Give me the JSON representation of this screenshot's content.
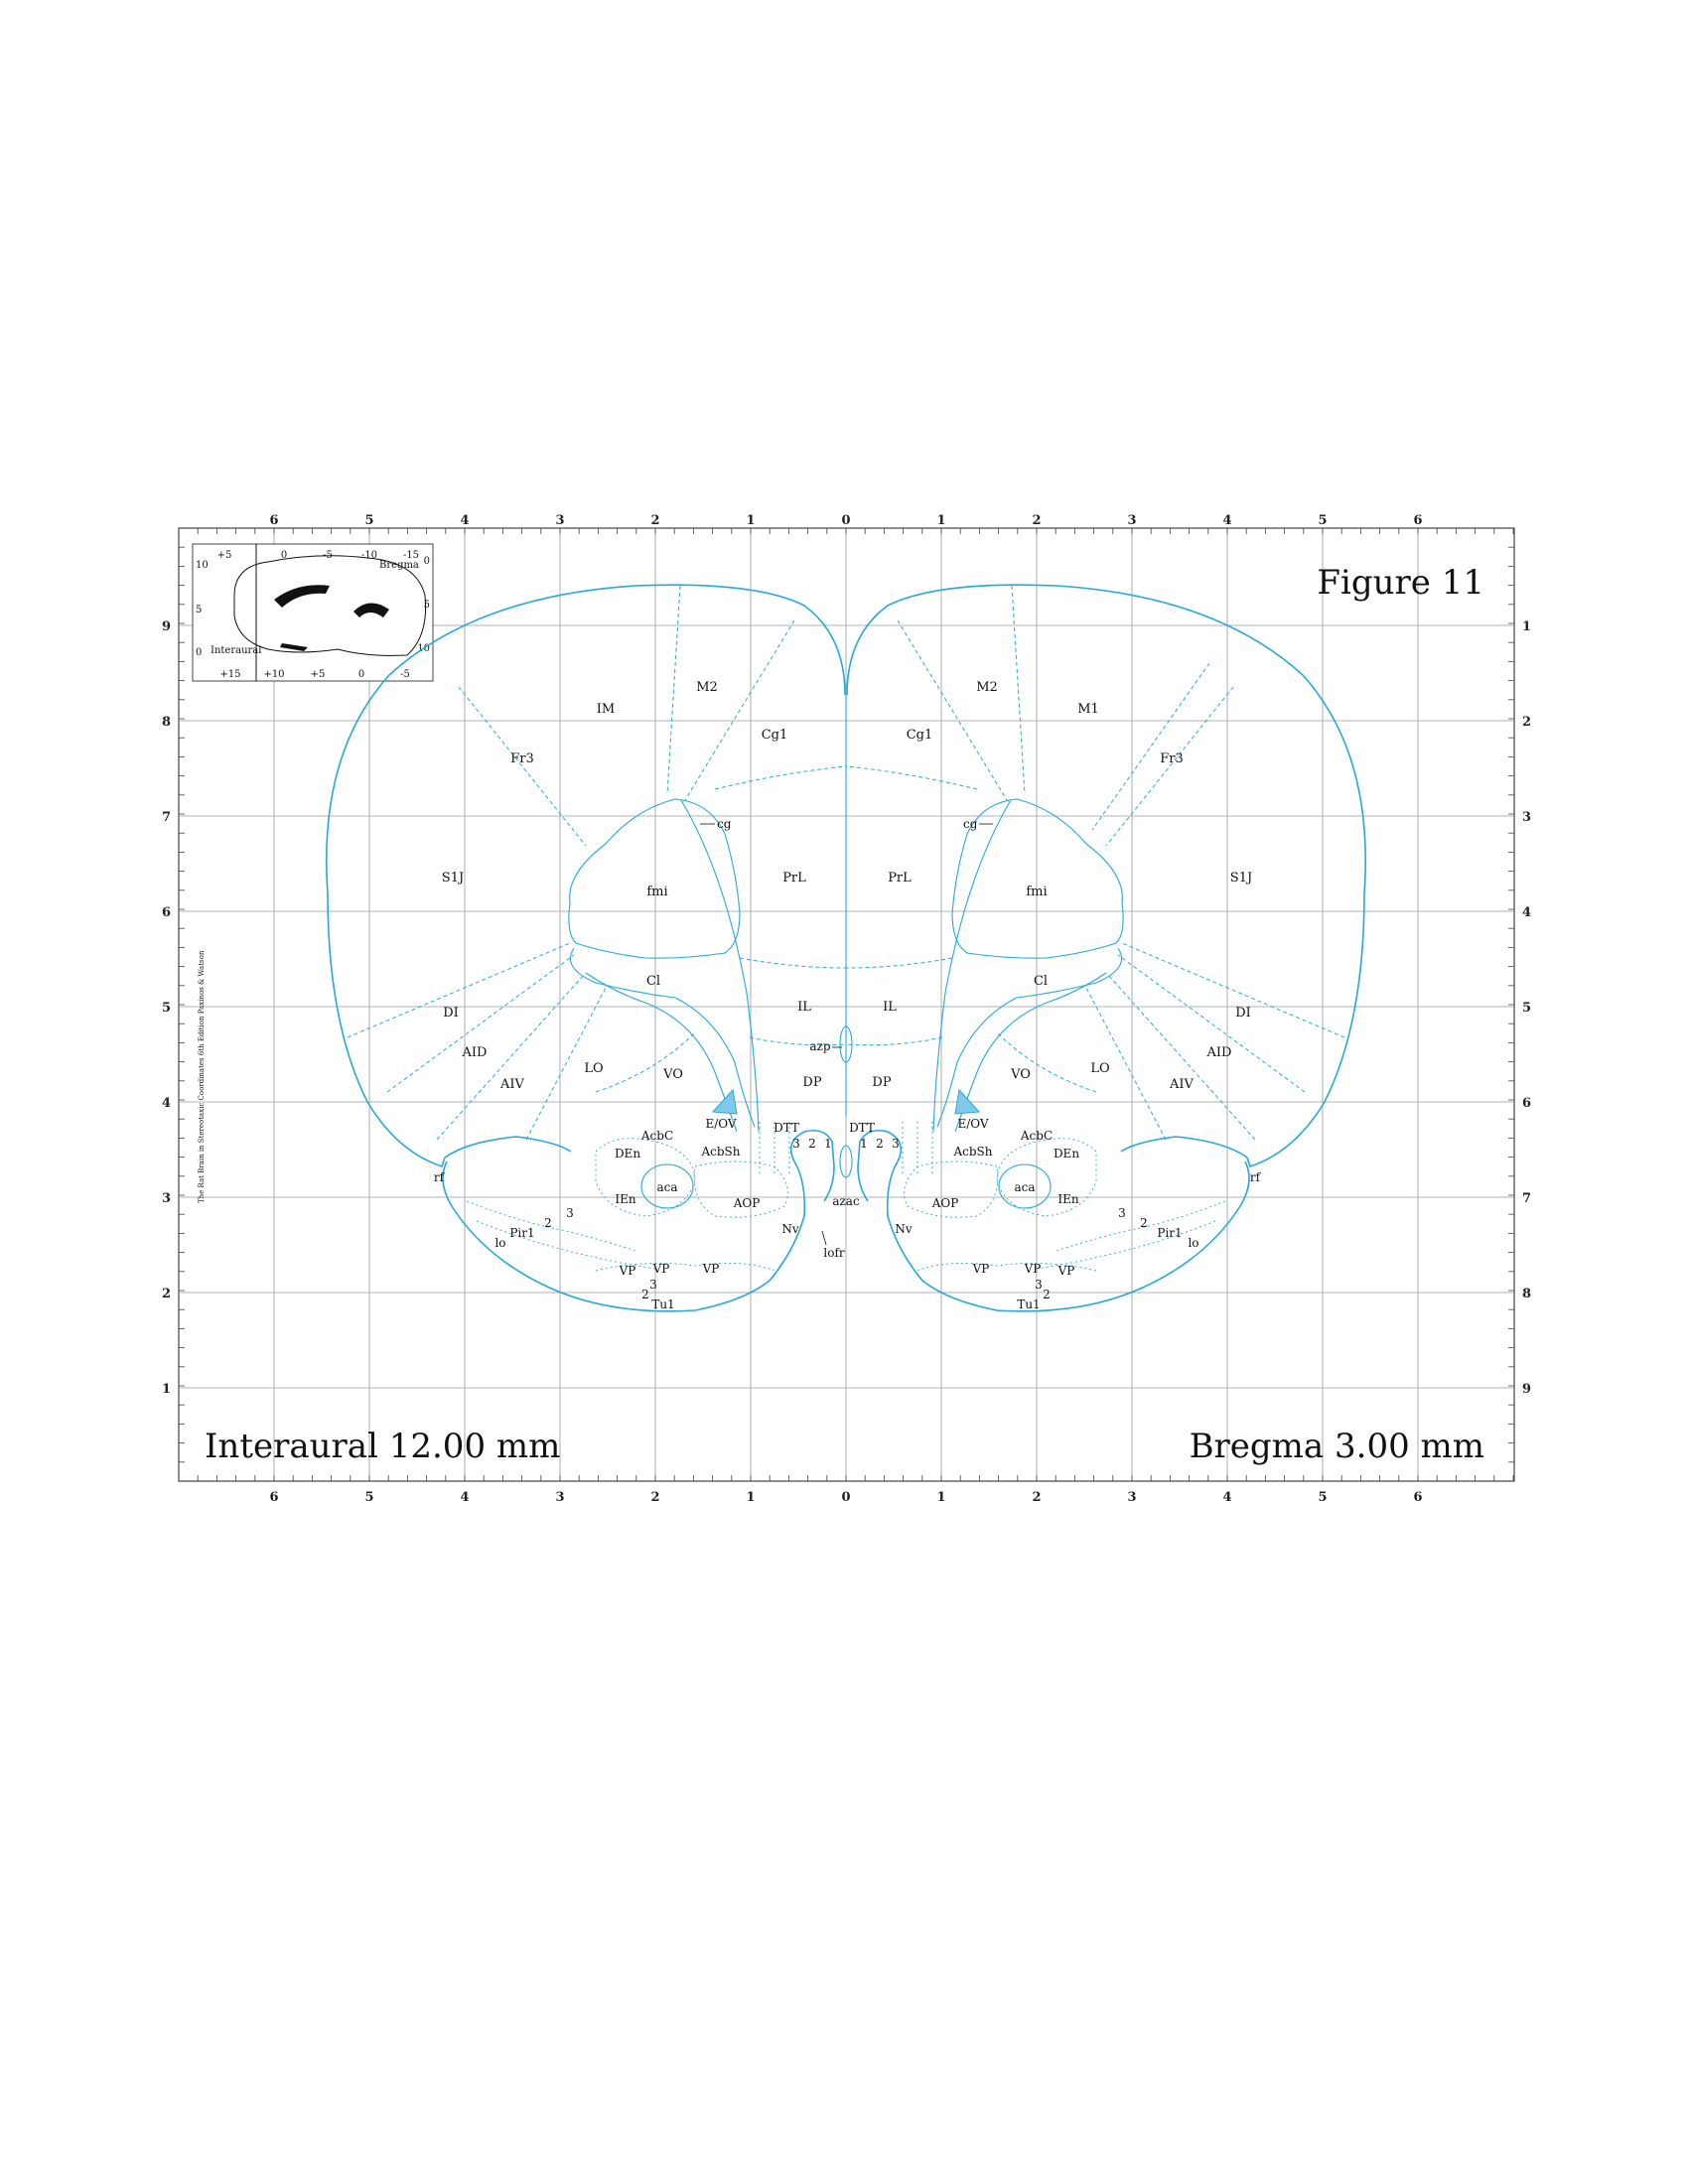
{
  "figure": {
    "title": "Figure 11",
    "interaural": "Interaural 12.00 mm",
    "bregma": "Bregma 3.00 mm",
    "credit": "The Rat Brain in Stereotaxic Coordinates 6th Edition Paxinos & Watson"
  },
  "axes": {
    "top": [
      "6",
      "5",
      "4",
      "3",
      "2",
      "1",
      "0",
      "1",
      "2",
      "3",
      "4",
      "5",
      "6"
    ],
    "bottom": [
      "6",
      "5",
      "4",
      "3",
      "2",
      "1",
      "0",
      "1",
      "2",
      "3",
      "4",
      "5",
      "6"
    ],
    "left": [
      "9",
      "8",
      "7",
      "6",
      "5",
      "4",
      "3",
      "2",
      "1"
    ],
    "right": [
      "1",
      "2",
      "3",
      "4",
      "5",
      "6",
      "7",
      "8",
      "9"
    ]
  },
  "inset": {
    "top_ticks": [
      "+5",
      "0",
      "-5",
      "-10",
      "-15"
    ],
    "bottom_ticks": [
      "+15",
      "+10",
      "+5",
      "0",
      "-5"
    ],
    "left_ticks": [
      "10",
      "5",
      "0"
    ],
    "right_ticks": [
      "0",
      "5",
      "10"
    ],
    "bregma": "Bregma",
    "interaural": "Interaural"
  },
  "regions": {
    "left": {
      "IM": "IM",
      "M2": "M2",
      "Cg1": "Cg1",
      "Fr3": "Fr3",
      "cg": "cg",
      "S1J": "S1J",
      "fmi": "fmi",
      "PrL": "PrL",
      "Cl": "Cl",
      "IL": "IL",
      "DI": "DI",
      "AID": "AID",
      "AIV": "AIV",
      "LO": "LO",
      "VO": "VO",
      "DP": "DP",
      "EOV": "E/OV",
      "AcbC": "AcbC",
      "DEn": "DEn",
      "AcbSh": "AcbSh",
      "DTT": "DTT",
      "rf": "rf",
      "aca": "aca",
      "IEn": "IEn",
      "AOP": "AOP",
      "Nv": "Nv",
      "Pir1": "Pir1",
      "lo": "lo",
      "VP1": "VP",
      "VP2": "VP",
      "VP3": "VP",
      "Tu1": "Tu1",
      "n1": "1",
      "n2": "2",
      "n3": "3",
      "p2": "2",
      "p3": "3",
      "t2": "2",
      "t3": "3"
    },
    "right": {
      "M2": "M2",
      "M1": "M1",
      "Cg1": "Cg1",
      "Fr3": "Fr3",
      "cg": "cg",
      "S1J": "S1J",
      "fmi": "fmi",
      "PrL": "PrL",
      "Cl": "Cl",
      "IL": "IL",
      "DI": "DI",
      "AID": "AID",
      "AIV": "AIV",
      "LO": "LO",
      "VO": "VO",
      "DP": "DP",
      "EOV": "E/OV",
      "AcbC": "AcbC",
      "DEn": "DEn",
      "AcbSh": "AcbSh",
      "DTT": "DTT",
      "rf": "rf",
      "aca": "aca",
      "IEn": "IEn",
      "AOP": "AOP",
      "Nv": "Nv",
      "Pir1": "Pir1",
      "lo": "lo",
      "VP1": "VP",
      "VP2": "VP",
      "VP3": "VP",
      "Tu1": "Tu1",
      "n1": "1",
      "n2": "2",
      "n3": "3",
      "p2": "2",
      "p3": "3",
      "t2": "2",
      "t3": "3"
    },
    "midline": {
      "azp": "azp",
      "azac": "azac",
      "lofr": "lofr"
    }
  },
  "colors": {
    "atlas_line": "#26a8d8",
    "grid": "#9a9a9a",
    "highlight": "#7fc9ea"
  }
}
